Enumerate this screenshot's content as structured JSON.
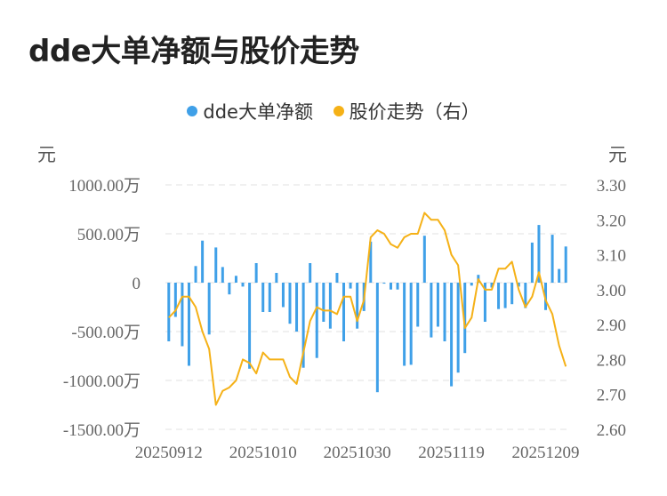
{
  "title": "dde大单净额与股价走势",
  "colors": {
    "bar": "#3fa0e8",
    "line": "#f5b117",
    "grid": "#e6e6e6"
  },
  "chart_data": {
    "type": "bar+line",
    "title": "dde大单净额与股价走势",
    "legend_position": "top-center",
    "grid": true,
    "left_unit": "元",
    "right_unit": "元",
    "y_left_ticks": [
      "1000.00万",
      "500.00万",
      "0",
      "-500.00万",
      "-1000.00万",
      "-1500.00万"
    ],
    "y_right_ticks": [
      "3.30",
      "3.20",
      "3.10",
      "3.00",
      "2.90",
      "2.80",
      "2.70",
      "2.60"
    ],
    "ylim_left": [
      -1500,
      1000
    ],
    "ylim_right": [
      2.6,
      3.3
    ],
    "x_tick_labels": [
      "20250912",
      "20251010",
      "20251030",
      "20251119",
      "20251209"
    ],
    "x_tick_indices": [
      0,
      14,
      28,
      42,
      56
    ],
    "series": [
      {
        "name": "dde大单净额",
        "kind": "bar",
        "axis": "left",
        "unit": "万",
        "values": [
          -600,
          -350,
          -650,
          -850,
          170,
          430,
          -530,
          360,
          160,
          -120,
          70,
          -40,
          -880,
          200,
          -300,
          -300,
          100,
          -250,
          -420,
          -500,
          -870,
          200,
          -770,
          -400,
          -470,
          100,
          -600,
          -60,
          -470,
          -290,
          420,
          -1120,
          -10,
          -70,
          -70,
          -850,
          -840,
          -450,
          480,
          -560,
          -450,
          -600,
          -1060,
          -920,
          -720,
          -30,
          80,
          -400,
          -50,
          -270,
          -260,
          -220,
          -40,
          -260,
          410,
          590,
          -280,
          490,
          140,
          370
        ]
      },
      {
        "name": "股价走势（右）",
        "kind": "line",
        "axis": "right",
        "values": [
          2.92,
          2.94,
          2.98,
          2.98,
          2.95,
          2.88,
          2.83,
          2.67,
          2.71,
          2.72,
          2.74,
          2.8,
          2.79,
          2.76,
          2.82,
          2.8,
          2.8,
          2.8,
          2.75,
          2.73,
          2.82,
          2.91,
          2.95,
          2.94,
          2.94,
          2.93,
          2.98,
          2.98,
          2.91,
          2.97,
          3.15,
          3.17,
          3.16,
          3.13,
          3.12,
          3.15,
          3.16,
          3.16,
          3.22,
          3.2,
          3.2,
          3.17,
          3.1,
          3.07,
          2.89,
          2.92,
          3.03,
          3.0,
          3.0,
          3.06,
          3.06,
          3.08,
          3.0,
          2.95,
          2.98,
          3.05,
          2.97,
          2.93,
          2.84,
          2.78
        ]
      }
    ]
  }
}
